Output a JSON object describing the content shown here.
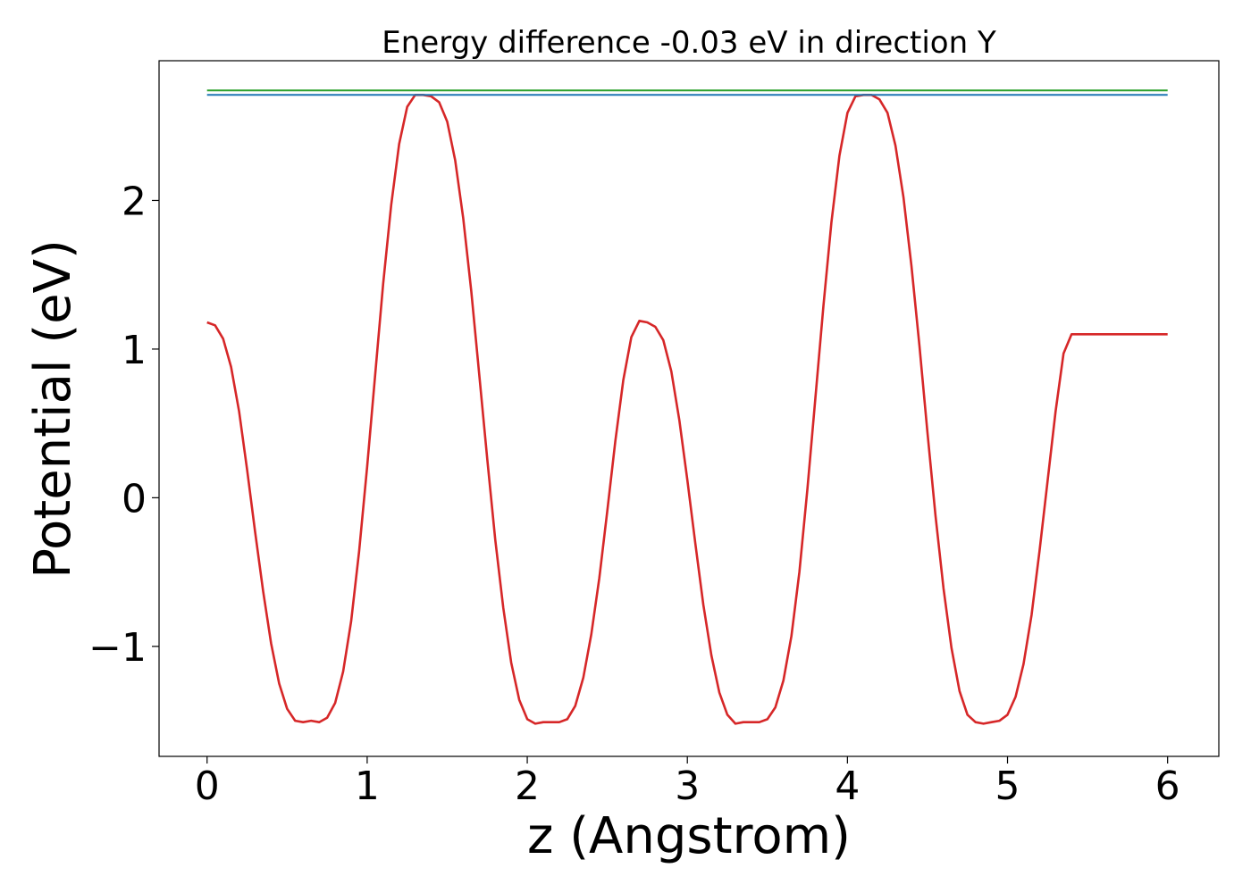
{
  "chart_data": {
    "type": "line",
    "title": "Energy difference -0.03 eV in direction Y",
    "xlabel": "z (Angstrom)",
    "ylabel": "Potential (eV)",
    "xlim": [
      -0.3,
      6.32
    ],
    "ylim": [
      -1.74,
      2.94
    ],
    "x_ticks": [
      0,
      1,
      2,
      3,
      4,
      5,
      6
    ],
    "x_tick_labels": [
      "0",
      "1",
      "2",
      "3",
      "4",
      "5",
      "6"
    ],
    "y_ticks": [
      -1,
      0,
      1,
      2
    ],
    "y_tick_labels": [
      "−1",
      "0",
      "1",
      "2"
    ],
    "grid": false,
    "legend": "none",
    "series": [
      {
        "color": "#d62728",
        "x": [
          0.0,
          0.05,
          0.1,
          0.15,
          0.2,
          0.25,
          0.3,
          0.35,
          0.4,
          0.45,
          0.5,
          0.55,
          0.6,
          0.65,
          0.7,
          0.75,
          0.8,
          0.85,
          0.9,
          0.95,
          1.0,
          1.05,
          1.1,
          1.15,
          1.2,
          1.25,
          1.3,
          1.35,
          1.4,
          1.45,
          1.5,
          1.55,
          1.6,
          1.65,
          1.7,
          1.75,
          1.8,
          1.85,
          1.9,
          1.95,
          2.0,
          2.05,
          2.1,
          2.15,
          2.2,
          2.25,
          2.3,
          2.35,
          2.4,
          2.45,
          2.5,
          2.55,
          2.6,
          2.65,
          2.7,
          2.75,
          2.8,
          2.85,
          2.9,
          2.95,
          3.0,
          3.05,
          3.1,
          3.15,
          3.2,
          3.25,
          3.3,
          3.35,
          3.4,
          3.45,
          3.5,
          3.55,
          3.6,
          3.65,
          3.7,
          3.75,
          3.8,
          3.85,
          3.9,
          3.95,
          4.0,
          4.05,
          4.1,
          4.15,
          4.2,
          4.25,
          4.3,
          4.35,
          4.4,
          4.45,
          4.5,
          4.55,
          4.6,
          4.65,
          4.7,
          4.75,
          4.8,
          4.85,
          4.9,
          4.95,
          5.0,
          5.05,
          5.1,
          5.15,
          5.2,
          5.25,
          5.3,
          5.35,
          5.4,
          5.45,
          5.5,
          5.55,
          5.6,
          5.65,
          5.7,
          5.75,
          5.8,
          5.85,
          5.9,
          5.95,
          6.0
        ],
        "y": [
          1.18,
          1.16,
          1.07,
          0.88,
          0.58,
          0.19,
          -0.23,
          -0.63,
          -0.98,
          -1.25,
          -1.42,
          -1.5,
          -1.51,
          -1.5,
          -1.51,
          -1.48,
          -1.38,
          -1.17,
          -0.83,
          -0.36,
          0.21,
          0.83,
          1.44,
          1.97,
          2.38,
          2.63,
          2.71,
          2.71,
          2.7,
          2.66,
          2.53,
          2.27,
          1.88,
          1.39,
          0.83,
          0.26,
          -0.28,
          -0.74,
          -1.11,
          -1.36,
          -1.49,
          -1.52,
          -1.51,
          -1.51,
          -1.51,
          -1.49,
          -1.4,
          -1.21,
          -0.92,
          -0.54,
          -0.09,
          0.38,
          0.79,
          1.08,
          1.19,
          1.18,
          1.15,
          1.06,
          0.85,
          0.52,
          0.12,
          -0.31,
          -0.72,
          -1.06,
          -1.31,
          -1.46,
          -1.52,
          -1.51,
          -1.51,
          -1.51,
          -1.49,
          -1.41,
          -1.23,
          -0.93,
          -0.5,
          0.06,
          0.67,
          1.29,
          1.85,
          2.3,
          2.59,
          2.7,
          2.71,
          2.71,
          2.68,
          2.59,
          2.37,
          2.02,
          1.56,
          1.02,
          0.44,
          -0.12,
          -0.61,
          -1.01,
          -1.3,
          -1.46,
          -1.51,
          -1.52,
          -1.51,
          -1.5,
          -1.46,
          -1.34,
          -1.12,
          -0.79,
          -0.36,
          0.11,
          0.58,
          0.97,
          1.1,
          1.1,
          1.1,
          1.1,
          1.1,
          1.1,
          1.1,
          1.1,
          1.1,
          1.1,
          1.1,
          1.1,
          1.1
        ]
      },
      {
        "color": "#2ca02c",
        "x": [
          0,
          6
        ],
        "y": [
          2.74,
          2.74
        ]
      },
      {
        "color": "#1f77b4",
        "x": [
          0,
          6
        ],
        "y": [
          2.71,
          2.71
        ]
      }
    ]
  }
}
